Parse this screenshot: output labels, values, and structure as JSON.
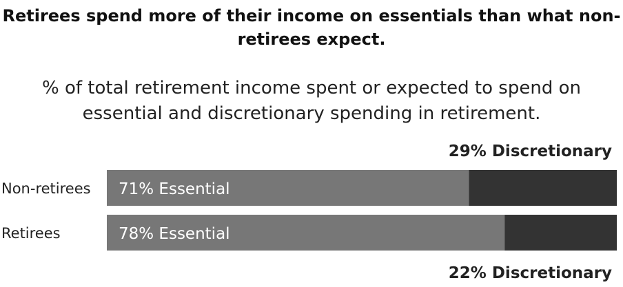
{
  "title": "Retirees spend more of their income on essentials than what non-retirees expect.",
  "subtitle": "% of total retirement income spent or expected to spend on essential and discretionary spending in retirement.",
  "chart_data": {
    "type": "bar",
    "orientation": "horizontal",
    "stacked": true,
    "categories": [
      "Non-retirees",
      "Retirees"
    ],
    "series": [
      {
        "name": "Essential",
        "values": [
          71,
          78
        ]
      },
      {
        "name": "Discretionary",
        "values": [
          29,
          22
        ]
      }
    ],
    "segment_labels": {
      "Non-retirees": {
        "essential": "71% Essential",
        "discretionary": "29% Discretionary"
      },
      "Retirees": {
        "essential": "78% Essential",
        "discretionary": "22% Discretionary"
      }
    },
    "xlim": [
      0,
      100
    ],
    "grid": false
  },
  "colors": {
    "essential": "#777777",
    "discretionary": "#333333",
    "essential_label": "#ffffff",
    "discretionary_label": "#222222",
    "category_label": "#222222"
  }
}
